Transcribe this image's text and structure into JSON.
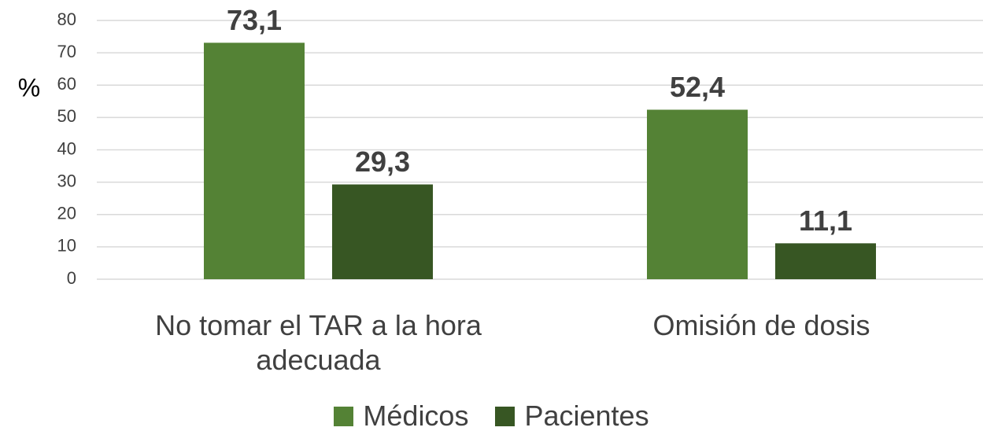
{
  "chart_data": {
    "type": "bar",
    "y_label": "%",
    "categories": [
      "No tomar el TAR a la hora adecuada",
      "Omisión de dosis"
    ],
    "series": [
      {
        "name": "Médicos",
        "color": "#548235",
        "values": [
          73.1,
          52.4
        ],
        "value_labels": [
          "73,1",
          "52,4"
        ]
      },
      {
        "name": "Pacientes",
        "color": "#375623",
        "values": [
          29.3,
          11.1
        ],
        "value_labels": [
          "29,3",
          "11,1"
        ]
      }
    ],
    "ylim": [
      0,
      80
    ],
    "yticks": [
      0,
      10,
      20,
      30,
      40,
      50,
      60,
      70,
      80
    ],
    "grid": true,
    "legend": "bottom"
  }
}
